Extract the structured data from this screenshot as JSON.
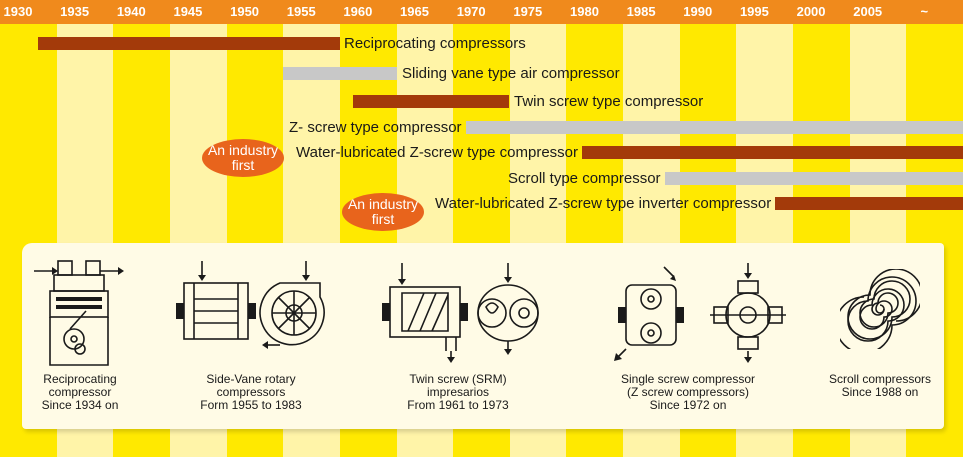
{
  "timeline": {
    "years": [
      "1930",
      "1935",
      "1940",
      "1945",
      "1950",
      "1955",
      "1960",
      "1965",
      "1970",
      "1975",
      "1980",
      "1985",
      "1990",
      "1995",
      "2000",
      "2005",
      "~"
    ]
  },
  "rows": [
    {
      "label": "Reciprocating compressors",
      "color": "#a33a0a"
    },
    {
      "label": "Sliding vane type air compressor",
      "color": "#c8c8c8"
    },
    {
      "label": "Twin screw type compressor",
      "color": "#a33a0a"
    },
    {
      "label": "Z- screw type compressor",
      "color": "#c8c8c8"
    },
    {
      "label": "Water-lubricated Z-screw type compressor",
      "color": "#a33a0a",
      "badge": [
        "An industry",
        "first"
      ]
    },
    {
      "label": "Scroll type compressor",
      "color": "#c8c8c8"
    },
    {
      "label": "Water-lubricated Z-screw type inverter compressor",
      "color": "#a33a0a",
      "badge": [
        "An industry",
        "first"
      ]
    }
  ],
  "illustrations": [
    {
      "icon": "reciprocating-compressor-icon",
      "caption": [
        "Reciprocating",
        "compressor",
        "Since 1934 on"
      ]
    },
    {
      "icon": "side-vane-rotary-compressor-icon",
      "caption": [
        "Side-Vane rotary",
        "compressors",
        "Form 1955 to 1983"
      ]
    },
    {
      "icon": "twin-screw-compressor-icon",
      "caption": [
        "Twin screw (SRM)",
        "impresarios",
        "From 1961 to 1973"
      ]
    },
    {
      "icon": "single-screw-compressor-icon",
      "caption": [
        "Single screw compressor",
        "(Z screw compressors)",
        "Since 1972 on"
      ]
    },
    {
      "icon": "scroll-compressor-icon",
      "caption": [
        "Scroll compressors",
        "Since 1988 on"
      ]
    }
  ]
}
